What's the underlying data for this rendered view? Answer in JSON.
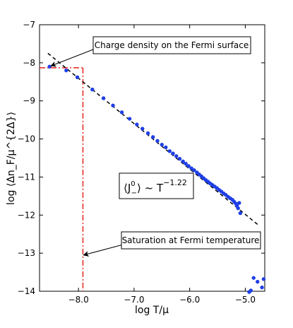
{
  "chart_data": {
    "type": "scatter",
    "title": "",
    "xlabel": "log T/μ",
    "ylabel": "log ⟨Δn_F/μ^{2Δ}⟩",
    "xlim": [
      -8.7,
      -4.65
    ],
    "ylim": [
      -14,
      -7
    ],
    "xticks": [
      -8.0,
      -7.0,
      -6.0,
      -5.0
    ],
    "xtick_labels": [
      "−8.0",
      "−7.0",
      "−6.0",
      "−5.0"
    ],
    "yticks": [
      -7,
      -8,
      -9,
      -10,
      -11,
      -12,
      -13,
      -14
    ],
    "ytick_labels": [
      "−7",
      "−8",
      "−9",
      "−10",
      "−11",
      "−12",
      "−13",
      "−14"
    ],
    "grid": false,
    "series": [
      {
        "color": "#1f3fe6",
        "x": [
          -8.52,
          -8.22,
          -8.02,
          -7.75,
          -7.55,
          -7.38,
          -7.22,
          -7.08,
          -6.95,
          -6.85,
          -6.75,
          -6.66,
          -6.58,
          -6.5,
          -6.43,
          -6.36,
          -6.3,
          -6.24,
          -6.18,
          -6.12,
          -6.07,
          -6.02,
          -5.97,
          -5.92,
          -5.87,
          -5.83,
          -5.79,
          -5.75,
          -5.71,
          -5.67,
          -5.63,
          -5.59,
          -5.55,
          -5.51,
          -5.47,
          -5.43,
          -5.39,
          -5.35,
          -5.31,
          -5.27,
          -5.23,
          -5.2,
          -5.17,
          -5.15,
          -5.13,
          -5.11,
          -5.09,
          -4.93,
          -4.9,
          -4.85,
          -4.78,
          -4.7,
          -4.67
        ],
        "y": [
          -8.1,
          -8.2,
          -8.38,
          -8.7,
          -8.93,
          -9.12,
          -9.3,
          -9.47,
          -9.62,
          -9.73,
          -9.85,
          -9.95,
          -10.05,
          -10.15,
          -10.22,
          -10.32,
          -10.38,
          -10.45,
          -10.52,
          -10.59,
          -10.65,
          -10.71,
          -10.77,
          -10.82,
          -10.88,
          -10.93,
          -10.98,
          -11.03,
          -11.08,
          -11.12,
          -11.17,
          -11.21,
          -11.25,
          -11.29,
          -11.34,
          -11.38,
          -11.43,
          -11.47,
          -11.52,
          -11.56,
          -11.6,
          -11.65,
          -11.7,
          -11.75,
          -11.82,
          -11.68,
          -11.95,
          -14.02,
          -13.98,
          -13.65,
          -13.75,
          -13.9,
          -13.68
        ]
      }
    ],
    "fit_line": {
      "x": [
        -8.55,
        -4.75
      ],
      "y": [
        -7.75,
        -12.28
      ],
      "style": "dashed",
      "color": "#000000"
    },
    "saturation_lines": {
      "x": -7.92,
      "y": -8.13,
      "color": "#e8231a",
      "style": "dash-dot"
    },
    "annotations": {
      "fermi_surface": {
        "text": "Charge density on the Fermi surface",
        "target_x": -8.52,
        "target_y": -8.1
      },
      "fermi_temperature": {
        "text": "Saturation at Fermi temperature",
        "target_x": -7.92,
        "target_y": -13.05
      },
      "scaling_law": {
        "base": "⟨J",
        "sup": "0",
        "sub": "−",
        "close": "⟩ ~ T",
        "exponent": "−1.22"
      }
    }
  }
}
